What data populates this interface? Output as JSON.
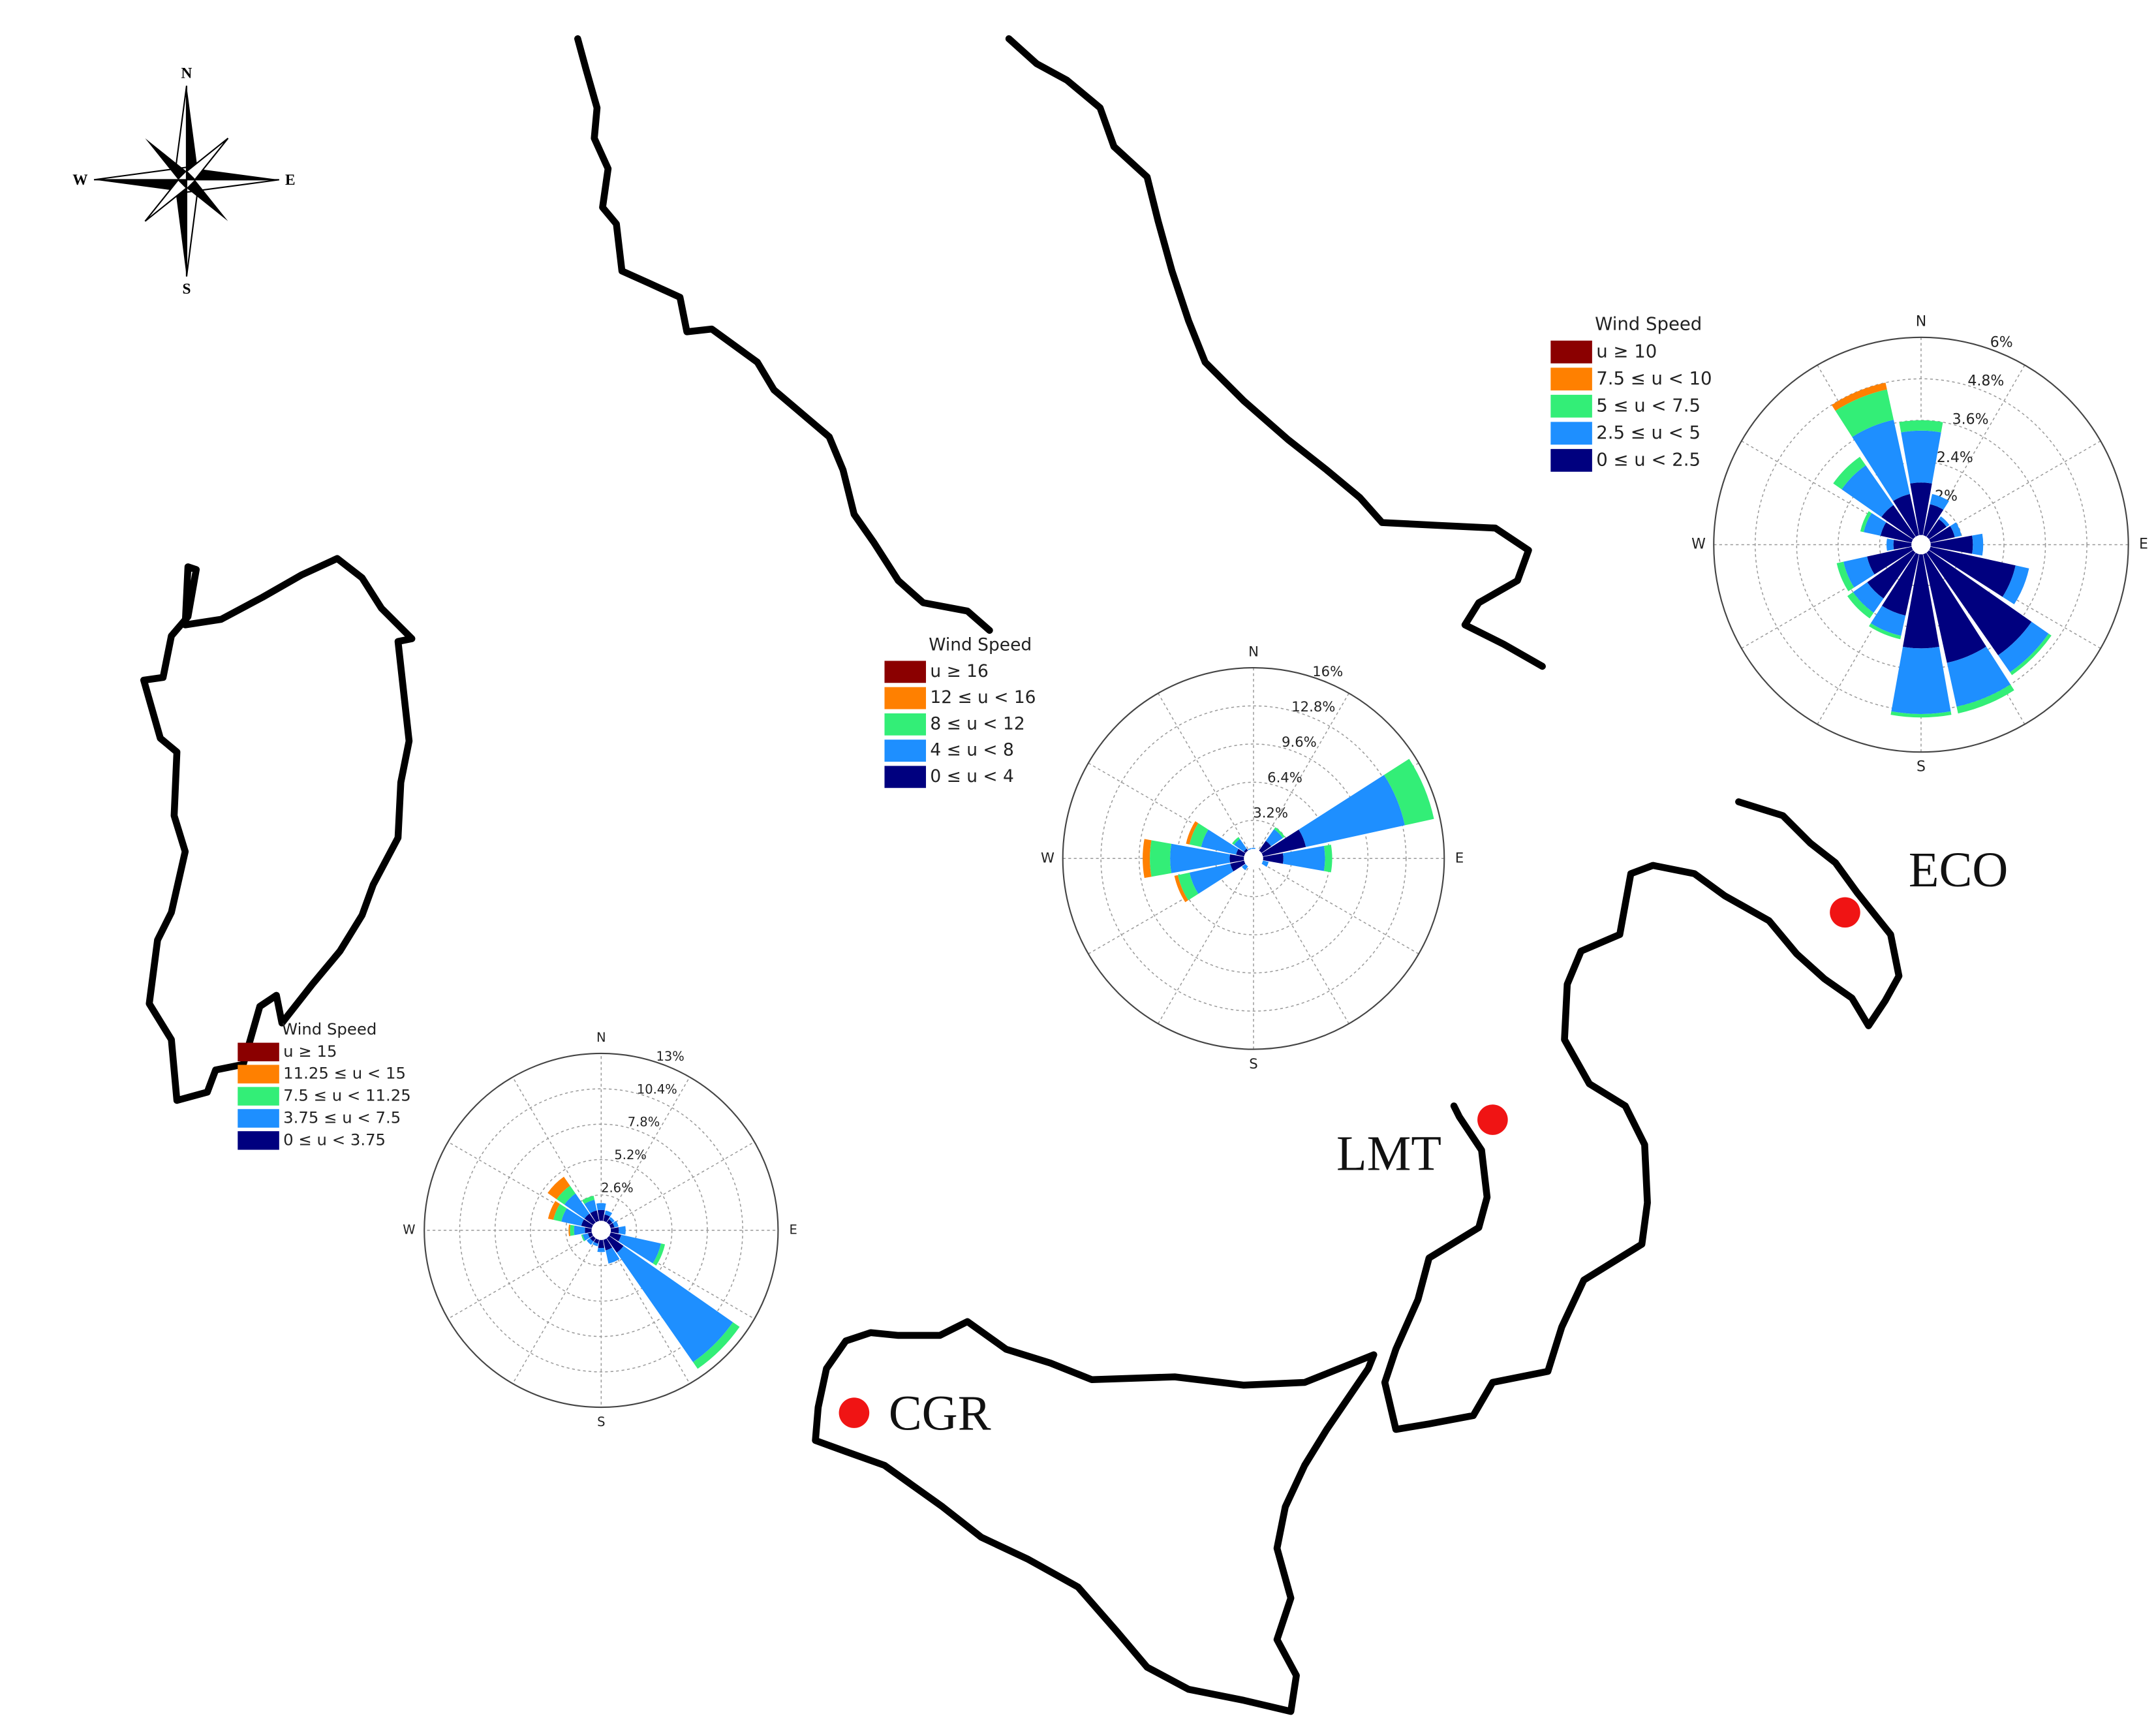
{
  "map": {
    "compass": {
      "n": "N",
      "w": "W",
      "e": "E",
      "s": "S"
    },
    "stations": [
      {
        "label": "ECO"
      },
      {
        "label": "LMT"
      },
      {
        "label": "CGR"
      }
    ]
  },
  "chart_data": [
    {
      "type": "windrose",
      "title": "Wind Speed",
      "categories": [
        "N",
        null,
        null,
        null,
        "E",
        null,
        null,
        null,
        "S",
        null,
        null,
        null,
        "W",
        null,
        null,
        null
      ],
      "rlim": [
        0,
        6
      ],
      "rticks": [
        {
          "value": 1.2,
          "label": "1.2%"
        },
        {
          "value": 2.4,
          "label": "2.4%"
        },
        {
          "value": 3.6,
          "label": "3.6%"
        },
        {
          "value": 4.8,
          "label": "4.8%"
        },
        {
          "value": 6,
          "label": "6%"
        }
      ],
      "series": [
        {
          "name": "u ≥ 10",
          "color": "#8b0000",
          "values": [
            0,
            0,
            0,
            0,
            0,
            0,
            0,
            0,
            0,
            0,
            0,
            0,
            0,
            0,
            0,
            0
          ]
        },
        {
          "name": "7.5 ≤ u < 10",
          "color": "#ff8000",
          "values": [
            0,
            0,
            0,
            0,
            0,
            0,
            0,
            0,
            0,
            0,
            0,
            0,
            0,
            0,
            0,
            0.2
          ]
        },
        {
          "name": "5 ≤ u < 7.5",
          "color": "#33ee77",
          "values": [
            0.3,
            0,
            0,
            0,
            0,
            0,
            0.1,
            0.2,
            0.1,
            0.1,
            0.2,
            0.2,
            0,
            0.1,
            0.3,
            0.9
          ]
        },
        {
          "name": "2.5 ≤ u < 5",
          "color": "#1e8fff",
          "values": [
            1.5,
            0.3,
            0.1,
            0.2,
            0.3,
            0.4,
            0.6,
            1.3,
            1.9,
            0.6,
            0.5,
            0.7,
            0.2,
            0.5,
            1.4,
            2.2
          ]
        },
        {
          "name": "0 ≤ u < 2.5",
          "color": "#00007f",
          "values": [
            1.8,
            1.2,
            0.9,
            1.0,
            1.5,
            2.8,
            3.9,
            3.5,
            3.0,
            2.1,
            1.9,
            1.6,
            0.8,
            1.2,
            1.4,
            1.5
          ]
        }
      ]
    },
    {
      "type": "windrose",
      "title": "Wind Speed",
      "categories": [
        "N",
        null,
        null,
        null,
        "E",
        null,
        null,
        null,
        "S",
        null,
        null,
        null,
        "W",
        null,
        null,
        null
      ],
      "rlim": [
        0,
        16
      ],
      "rticks": [
        {
          "value": 3.2,
          "label": "3.2%"
        },
        {
          "value": 6.4,
          "label": "6.4%"
        },
        {
          "value": 9.6,
          "label": "9.6%"
        },
        {
          "value": 12.8,
          "label": "12.8%"
        },
        {
          "value": 16,
          "label": "16%"
        }
      ],
      "series": [
        {
          "name": "u ≥ 16",
          "color": "#8b0000",
          "values": [
            0,
            0,
            0,
            0,
            0,
            0,
            0,
            0,
            0,
            0,
            0,
            0,
            0,
            0,
            0,
            0
          ]
        },
        {
          "name": "12 ≤ u < 16",
          "color": "#ff8000",
          "values": [
            0,
            0,
            0,
            0,
            0,
            0,
            0,
            0,
            0,
            0,
            0,
            0.3,
            0.6,
            0.3,
            0,
            0
          ]
        },
        {
          "name": "8 ≤ u < 12",
          "color": "#33ee77",
          "values": [
            0,
            0,
            0.2,
            2.5,
            0.6,
            0,
            0,
            0,
            0,
            0,
            0,
            1.0,
            1.7,
            1.0,
            0.2,
            0
          ]
        },
        {
          "name": "4 ≤ u < 8",
          "color": "#1e8fff",
          "values": [
            0.3,
            0.2,
            1.2,
            8.5,
            3.5,
            0.5,
            0.2,
            0.1,
            0.2,
            0.2,
            0.4,
            3.5,
            5.0,
            3.0,
            1.0,
            0.3
          ]
        },
        {
          "name": "0 ≤ u < 4",
          "color": "#00007f",
          "values": [
            0.6,
            0.5,
            1.8,
            4.5,
            2.5,
            0.8,
            0.5,
            0.4,
            0.6,
            0.5,
            0.8,
            2.0,
            2.0,
            1.5,
            1.0,
            0.6
          ]
        }
      ]
    },
    {
      "type": "windrose",
      "title": "Wind Speed",
      "categories": [
        "N",
        null,
        null,
        null,
        "E",
        null,
        null,
        null,
        "S",
        null,
        null,
        null,
        "W",
        null,
        null,
        null
      ],
      "rlim": [
        0,
        13
      ],
      "rticks": [
        {
          "value": 2.6,
          "label": "2.6%"
        },
        {
          "value": 5.2,
          "label": "5.2%"
        },
        {
          "value": 7.8,
          "label": "7.8%"
        },
        {
          "value": 10.4,
          "label": "10.4%"
        },
        {
          "value": 13,
          "label": "13%"
        }
      ],
      "series": [
        {
          "name": "u ≥ 15",
          "color": "#8b0000",
          "values": [
            0,
            0,
            0,
            0,
            0,
            0,
            0,
            0,
            0,
            0,
            0,
            0,
            0,
            0,
            0,
            0
          ]
        },
        {
          "name": "11.25 ≤ u < 15",
          "color": "#ff8000",
          "values": [
            0,
            0,
            0,
            0,
            0,
            0,
            0,
            0,
            0,
            0,
            0,
            0,
            0.1,
            0.4,
            0.8,
            0
          ]
        },
        {
          "name": "7.5 ≤ u < 11.25",
          "color": "#33ee77",
          "values": [
            0,
            0,
            0,
            0,
            0,
            0.3,
            0.6,
            0,
            0,
            0,
            0,
            0.1,
            0.3,
            0.6,
            0.7,
            0.3
          ]
        },
        {
          "name": "3.75 ≤ u < 7.5",
          "color": "#1e8fff",
          "values": [
            0.5,
            0.3,
            0.2,
            0.3,
            0.5,
            3.0,
            9.8,
            1.0,
            0.3,
            0.2,
            0.3,
            0.4,
            0.8,
            1.5,
            1.8,
            0.8
          ]
        },
        {
          "name": "0 ≤ u < 3.75",
          "color": "#00007f",
          "values": [
            1.5,
            1.2,
            1.0,
            1.0,
            1.3,
            1.5,
            2.0,
            1.5,
            1.3,
            1.0,
            1.0,
            1.0,
            1.2,
            1.5,
            1.5,
            1.5
          ]
        }
      ]
    }
  ]
}
